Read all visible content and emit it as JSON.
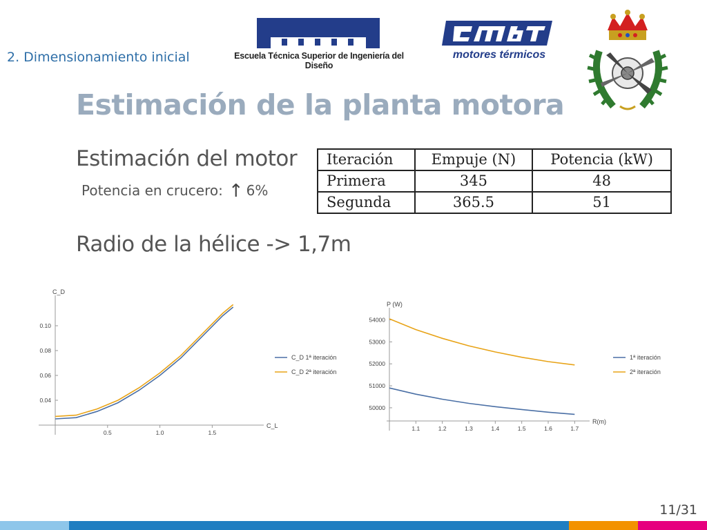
{
  "header": {
    "section": "2. Dimensionamiento inicial",
    "logo_etsid_text": "Escuela Técnica Superior de Ingeniería del Diseño",
    "logo_cmt_text": "motores térmicos"
  },
  "slide": {
    "title": "Estimación de la planta motora",
    "subtitle": "Estimación del motor",
    "power_label": "Potencia en crucero:",
    "power_arrow": "↑",
    "power_value": "6%",
    "radius_line": "Radio de la hélice -> 1,7m",
    "page": "11/31"
  },
  "table": {
    "headers": [
      "Iteración",
      "Empuje (N)",
      "Potencia (kW)"
    ],
    "rows": [
      [
        "Primera",
        "345",
        "48"
      ],
      [
        "Segunda",
        "365.5",
        "51"
      ]
    ]
  },
  "colors": {
    "series1": "#4a6fa5",
    "series2": "#e8a317",
    "title": "#9aabbd",
    "section": "#2f6fa8",
    "footer": [
      "#8ec6ea",
      "#1f7ec1",
      "#f39200",
      "#e6007e"
    ]
  },
  "chart_data": [
    {
      "type": "line",
      "xlabel": "C_L",
      "ylabel": "C_D",
      "xlim": [
        0.0,
        1.9
      ],
      "ylim": [
        0.02,
        0.12
      ],
      "x_ticks": [
        "0.5",
        "1.0",
        "1.5"
      ],
      "y_ticks": [
        "0.04",
        "0.06",
        "0.08",
        "0.10"
      ],
      "legend_position": "right",
      "series": [
        {
          "name": "C_D 1ª iteración",
          "x": [
            0.0,
            0.2,
            0.4,
            0.6,
            0.8,
            1.0,
            1.2,
            1.4,
            1.6,
            1.7
          ],
          "values": [
            0.025,
            0.026,
            0.031,
            0.038,
            0.048,
            0.06,
            0.074,
            0.091,
            0.108,
            0.115
          ]
        },
        {
          "name": "C_D 2ª iteración",
          "x": [
            0.0,
            0.2,
            0.4,
            0.6,
            0.8,
            1.0,
            1.2,
            1.4,
            1.6,
            1.7
          ],
          "values": [
            0.027,
            0.028,
            0.033,
            0.04,
            0.05,
            0.062,
            0.076,
            0.093,
            0.11,
            0.117
          ]
        }
      ]
    },
    {
      "type": "line",
      "xlabel": "R(m)",
      "ylabel": "P (W)",
      "xlim": [
        1.0,
        1.72
      ],
      "ylim": [
        49400,
        54300
      ],
      "x_ticks": [
        "1.1",
        "1.2",
        "1.3",
        "1.4",
        "1.5",
        "1.6",
        "1.7"
      ],
      "y_ticks": [
        "50000",
        "51000",
        "52000",
        "53000",
        "54000"
      ],
      "legend_position": "right",
      "series": [
        {
          "name": "1ª iteración",
          "x": [
            1.0,
            1.1,
            1.2,
            1.3,
            1.4,
            1.5,
            1.6,
            1.7
          ],
          "values": [
            50900,
            50620,
            50390,
            50200,
            50050,
            49920,
            49800,
            49700
          ]
        },
        {
          "name": "2ª iteración",
          "x": [
            1.0,
            1.1,
            1.2,
            1.3,
            1.4,
            1.5,
            1.6,
            1.7
          ],
          "values": [
            54050,
            53560,
            53160,
            52820,
            52540,
            52300,
            52100,
            51950
          ]
        }
      ]
    }
  ]
}
